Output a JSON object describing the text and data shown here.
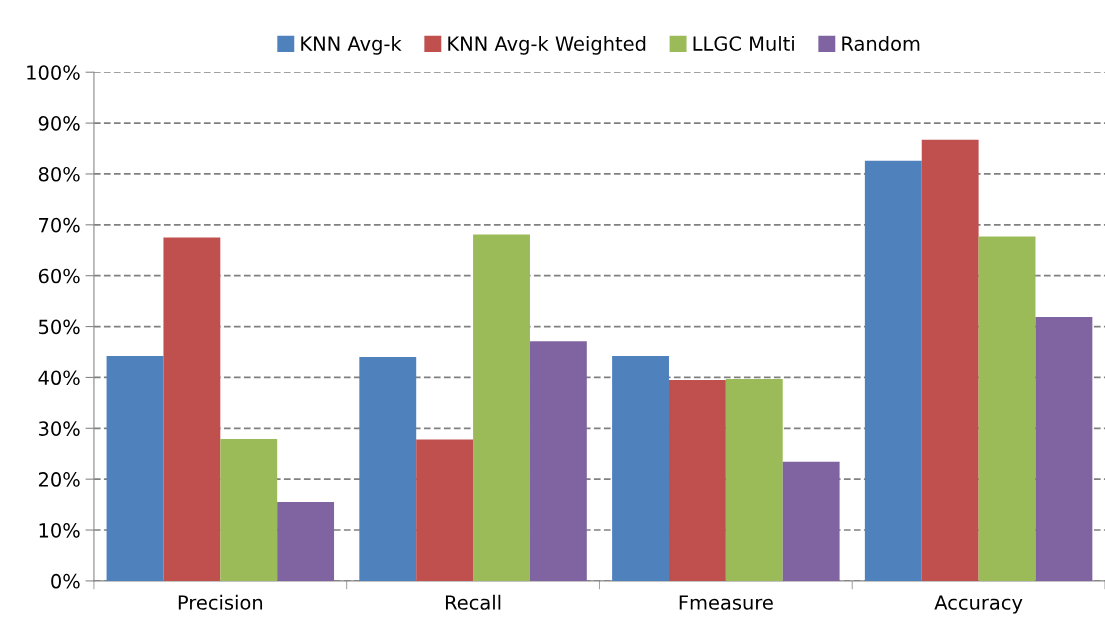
{
  "chart_data": {
    "type": "bar",
    "categories": [
      "Precision",
      "Recall",
      "Fmeasure",
      "Accuracy"
    ],
    "series": [
      {
        "name": "KNN Avg-k",
        "color": "#4f81bd",
        "values": [
          44.2,
          44.0,
          44.2,
          82.6
        ]
      },
      {
        "name": "KNN Avg-k Weighted",
        "color": "#c0504d",
        "values": [
          67.5,
          27.8,
          39.5,
          86.7
        ]
      },
      {
        "name": "LLGC Multi",
        "color": "#9bbb59",
        "values": [
          27.9,
          68.1,
          39.7,
          67.7
        ]
      },
      {
        "name": "Random",
        "color": "#8064a2",
        "values": [
          15.5,
          47.1,
          23.4,
          51.9
        ]
      }
    ],
    "ylim": [
      0,
      100
    ],
    "yticks": [
      {
        "value": 0,
        "label": "0%"
      },
      {
        "value": 10,
        "label": "10%"
      },
      {
        "value": 20,
        "label": "20%"
      },
      {
        "value": 30,
        "label": "30%"
      },
      {
        "value": 40,
        "label": "40%"
      },
      {
        "value": 50,
        "label": "50%"
      },
      {
        "value": 60,
        "label": "60%"
      },
      {
        "value": 70,
        "label": "70%"
      },
      {
        "value": 80,
        "label": "80%"
      },
      {
        "value": 90,
        "label": "90%"
      },
      {
        "value": 100,
        "label": "100%"
      }
    ],
    "grid": "y",
    "legend": "top"
  }
}
